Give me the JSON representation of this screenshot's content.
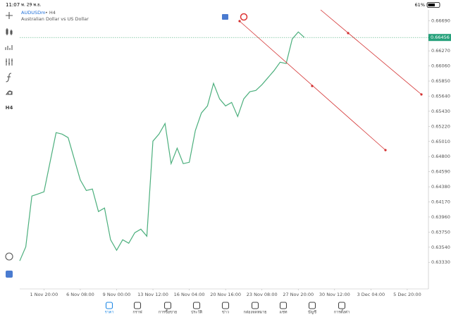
{
  "status_bar": {
    "time": "11:07",
    "date": "พ. 29 พ.ย.",
    "battery": "61%"
  },
  "header": {
    "symbol": "AUDUSDm",
    "timeframe": "• H4",
    "description": "Australian Dollar vs US Dollar"
  },
  "toolbar": {
    "timeframe_button": "H4"
  },
  "chart_data": {
    "type": "line",
    "color": "#4caf7d",
    "x": [
      -8,
      -6,
      -4,
      -2,
      0,
      2,
      4,
      6,
      8,
      10,
      12,
      14,
      16,
      18,
      20,
      22,
      24,
      26,
      28,
      30,
      32,
      34,
      36,
      38,
      40,
      42,
      44,
      46,
      48,
      50,
      52,
      54,
      56,
      58,
      60,
      62,
      64,
      66,
      68,
      70,
      72,
      74,
      76,
      78,
      80,
      82,
      84,
      86
    ],
    "values": [
      0.6335,
      0.63546,
      0.64251,
      0.6428,
      0.6431,
      0.64721,
      0.65133,
      0.65113,
      0.65064,
      0.6477,
      0.64476,
      0.64329,
      0.64349,
      0.64036,
      0.64085,
      0.63644,
      0.63497,
      0.63644,
      0.63595,
      0.63742,
      0.63791,
      0.63693,
      0.65015,
      0.65113,
      0.6526,
      0.64702,
      0.64917,
      0.64702,
      0.64721,
      0.65162,
      0.65407,
      0.65505,
      0.65818,
      0.65603,
      0.65505,
      0.65554,
      0.65358,
      0.65603,
      0.65701,
      0.6572,
      0.65799,
      0.65897,
      0.65995,
      0.66112,
      0.66093,
      0.66435,
      0.66533,
      0.66456
    ],
    "xlim": [
      -8,
      127
    ],
    "ylim": [
      0.6296,
      0.6684
    ],
    "xticks": [
      {
        "value": 0,
        "label": "1 Nov 20:00"
      },
      {
        "value": 12,
        "label": "6 Nov 08:00"
      },
      {
        "value": 24,
        "label": "9 Nov 00:00"
      },
      {
        "value": 36,
        "label": "13 Nov 12:00"
      },
      {
        "value": 48,
        "label": "16 Nov 04:00"
      },
      {
        "value": 60,
        "label": "20 Nov 16:00"
      },
      {
        "value": 72,
        "label": "23 Nov 08:00"
      },
      {
        "value": 84,
        "label": "27 Nov 20:00"
      },
      {
        "value": 96,
        "label": "30 Nov 12:00"
      },
      {
        "value": 108,
        "label": "3 Dec 04:00"
      },
      {
        "value": 120,
        "label": "5 Dec 20:00"
      }
    ],
    "yticks": [
      {
        "value": 0.6669,
        "label": "0.66690"
      },
      {
        "value": 0.6627,
        "label": "0.66270"
      },
      {
        "value": 0.6606,
        "label": "0.66060"
      },
      {
        "value": 0.6585,
        "label": "0.65850"
      },
      {
        "value": 0.6564,
        "label": "0.65640"
      },
      {
        "value": 0.6543,
        "label": "0.65430"
      },
      {
        "value": 0.6522,
        "label": "0.65220"
      },
      {
        "value": 0.6501,
        "label": "0.65010"
      },
      {
        "value": 0.648,
        "label": "0.64800"
      },
      {
        "value": 0.6459,
        "label": "0.64590"
      },
      {
        "value": 0.6438,
        "label": "0.64380"
      },
      {
        "value": 0.6417,
        "label": "0.64170"
      },
      {
        "value": 0.6396,
        "label": "0.63960"
      },
      {
        "value": 0.6375,
        "label": "0.63750"
      },
      {
        "value": 0.6354,
        "label": "0.63540"
      },
      {
        "value": 0.6333,
        "label": "0.63330"
      }
    ],
    "current_price": 0.66456,
    "grid": false
  },
  "nav": [
    "ราคา",
    "กราฟ",
    "การซื้อขาย",
    "ประวัติ",
    "ข่าว",
    "กล่องจดหมาย",
    "แชท",
    "บัญชี",
    "การตั้งค่า"
  ]
}
